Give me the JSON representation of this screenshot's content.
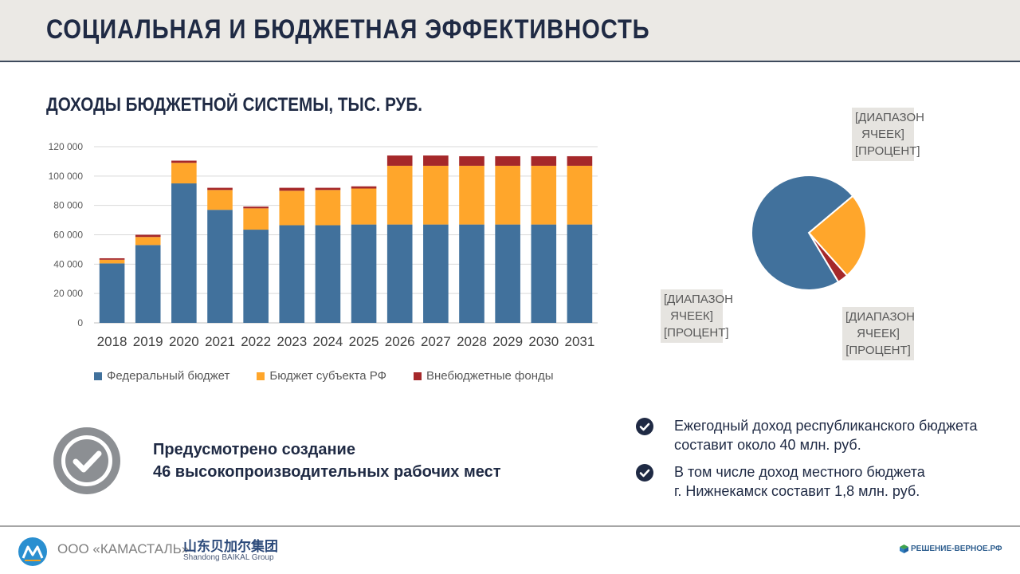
{
  "header": {
    "title": "СОЦИАЛЬНАЯ И БЮДЖЕТНАЯ ЭФФЕКТИВНОСТЬ"
  },
  "chart_data": [
    {
      "type": "bar",
      "stacked": true,
      "title": "ДОХОДЫ БЮДЖЕТНОЙ СИСТЕМЫ, ТЫС. РУБ.",
      "categories": [
        "2018",
        "2019",
        "2020",
        "2021",
        "2022",
        "2023",
        "2024",
        "2025",
        "2026",
        "2027",
        "2028",
        "2029",
        "2030",
        "2031"
      ],
      "series": [
        {
          "name": "Федеральный бюджет",
          "color": "#41719c",
          "values": [
            40500,
            53000,
            95000,
            77000,
            63500,
            66500,
            66500,
            67000,
            67000,
            67000,
            67000,
            67000,
            67000,
            67000
          ]
        },
        {
          "name": "Бюджет субъекта РФ",
          "color": "#ffa62b",
          "values": [
            2500,
            5500,
            14000,
            13500,
            14500,
            23500,
            24000,
            24500,
            40000,
            40000,
            40000,
            40000,
            40000,
            40000
          ]
        },
        {
          "name": "Внебюджетные фонды",
          "color": "#a5282a",
          "values": [
            1000,
            1500,
            1500,
            1500,
            1200,
            2000,
            1500,
            1500,
            7000,
            7000,
            6500,
            6500,
            6500,
            6500
          ]
        }
      ],
      "ylim": [
        0,
        120000
      ],
      "yticks": [
        0,
        20000,
        40000,
        60000,
        80000,
        100000,
        120000
      ],
      "ytick_labels": [
        "0",
        "20 000",
        "40 000",
        "60 000",
        "80 000",
        "100 000",
        "120 000"
      ],
      "grid": true,
      "legend": "bottom"
    },
    {
      "type": "pie",
      "slices": [
        {
          "value": 72.5,
          "color": "#41719c"
        },
        {
          "value": 24.5,
          "color": "#ffa62b"
        },
        {
          "value": 3.0,
          "color": "#a5282a"
        }
      ],
      "labels": [
        "[ДИАПАЗОН ЯЧЕЕК] [ПРОЦЕНТ]",
        "[ДИАПАЗОН ЯЧЕЕК] [ПРОЦЕНТ]",
        "[ДИАПАЗОН ЯЧЕЕК] [ПРОЦЕНТ]"
      ],
      "label_lines": [
        [
          "[ДИАПАЗОН",
          "ЯЧЕЕК]",
          "[ПРОЦЕНТ]"
        ],
        [
          "[ДИАПАЗОН",
          "ЯЧЕЕК]",
          "[ПРОЦЕНТ]"
        ],
        [
          "[ДИАПАЗОН",
          "ЯЧЕЕК]",
          "[ПРОЦЕНТ]"
        ]
      ]
    }
  ],
  "jobs": {
    "line1": "Предусмотрено создание",
    "line2": "46 высокопроизводительных рабочих мест"
  },
  "bullets": [
    {
      "line1": "Ежегодный доход республиканского бюджета",
      "line2": "составит около 40 млн. руб."
    },
    {
      "line1": "В том числе доход местного бюджета",
      "line2": "г. Нижнекамск составит 1,8 млн. руб."
    }
  ],
  "footer": {
    "company": "ООО «КАМАСТАЛЬ»",
    "partner_cn": "山东贝加尔集团",
    "partner_en": "Shandong BAIKAL Group",
    "site": "РЕШЕНИЕ-ВЕРНОЕ.РФ"
  },
  "colors": {
    "title": "#1f2a44",
    "header_bg": "#ebe9e5",
    "icon_gray": "#8c8f93",
    "accent_dark": "#1f2a44"
  }
}
